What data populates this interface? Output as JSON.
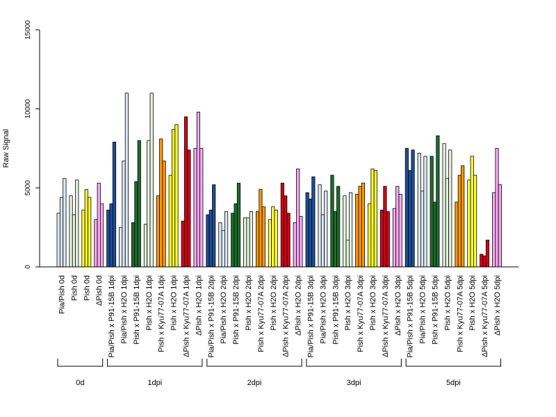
{
  "chart_data": {
    "type": "bar",
    "title": "",
    "xlabel": "",
    "ylabel": "Raw Signal",
    "ylim": [
      0,
      15000
    ],
    "yticks": [
      0,
      5000,
      10000,
      15000
    ],
    "grid": false,
    "legend": "none",
    "colors": {
      "Pia/Pish": "#dbe8f7",
      "Pish": "#e4f2de",
      "Pish yellow": "#ffff33",
      "ΔPish": "#f7a8f0",
      "P91-15B blue": "#1f4f99",
      "P91-15B green": "#1e6e2e",
      "Kyu77-07A": "#ff9900",
      "ΔPish x Kyu77-07A": "#d40018"
    },
    "categories": [
      {
        "label": "Pia/Pish 0d",
        "group": "0d",
        "color": "#dbe8f7",
        "values": [
          3400,
          4400,
          5600
        ]
      },
      {
        "label": "Pish 0d",
        "group": "0d",
        "color": "#e4f2de",
        "values": [
          4500,
          3300,
          5500
        ]
      },
      {
        "label": "Pish 0d",
        "group": "0d",
        "color": "#ffff33",
        "values": [
          3600,
          4900,
          4400
        ]
      },
      {
        "label": "ΔPish 0d",
        "group": "0d",
        "color": "#f7a8f0",
        "values": [
          3000,
          5300,
          4000
        ]
      },
      {
        "label": "Pia/Pish x P91-15B 1dpi",
        "group": "1dpi",
        "color": "#1f4f99",
        "values": [
          3600,
          4000,
          7900
        ]
      },
      {
        "label": "Pia/Pish x H2O 1dpi",
        "group": "1dpi",
        "color": "#dbe8f7",
        "values": [
          2500,
          6700,
          11000
        ]
      },
      {
        "label": "Pish x P91-15B 1dpi",
        "group": "1dpi",
        "color": "#1e6e2e",
        "values": [
          2800,
          5400,
          8000
        ]
      },
      {
        "label": "Pish x H2O 1dpi",
        "group": "1dpi",
        "color": "#e4f2de",
        "values": [
          2700,
          8000,
          11000
        ]
      },
      {
        "label": "Pish x Kyu77-07A 1dpi",
        "group": "1dpi",
        "color": "#ff9900",
        "values": [
          4500,
          8100,
          6700
        ]
      },
      {
        "label": "Pish x H2O 1dpi",
        "group": "1dpi",
        "color": "#ffff33",
        "values": [
          5800,
          8700,
          9000
        ]
      },
      {
        "label": "ΔPish x Kyu77-07A 1dpi",
        "group": "1dpi",
        "color": "#d40018",
        "values": [
          2900,
          9500,
          7400
        ]
      },
      {
        "label": "ΔPish x H2O 1dpi",
        "group": "1dpi",
        "color": "#f7a8f0",
        "values": [
          7500,
          9800,
          7500
        ]
      },
      {
        "label": "Pia/Pish x P91-15B 2dpi",
        "group": "2dpi",
        "color": "#1f4f99",
        "values": [
          3300,
          3600,
          5200
        ]
      },
      {
        "label": "Pia/Pish x H2O 2dpi",
        "group": "2dpi",
        "color": "#dbe8f7",
        "values": [
          2800,
          2300,
          3500
        ]
      },
      {
        "label": "Pish x P91-15B 2dpi",
        "group": "2dpi",
        "color": "#1e6e2e",
        "values": [
          3400,
          4000,
          5300
        ]
      },
      {
        "label": "Pish x H2O 2dpi",
        "group": "2dpi",
        "color": "#e4f2de",
        "values": [
          3100,
          3100,
          3500
        ]
      },
      {
        "label": "Pish x Kyu77-07A 2dpi",
        "group": "2dpi",
        "color": "#ff9900",
        "values": [
          3500,
          4900,
          3800
        ]
      },
      {
        "label": "Pish x H2O 2dpi",
        "group": "2dpi",
        "color": "#ffff33",
        "values": [
          3000,
          3800,
          3600
        ]
      },
      {
        "label": "ΔPish x Kyu77-07A 2dpi",
        "group": "2dpi",
        "color": "#d40018",
        "values": [
          5300,
          4500,
          3400
        ]
      },
      {
        "label": "ΔPish x H2O 2dpi",
        "group": "2dpi",
        "color": "#f7a8f0",
        "values": [
          2800,
          6200,
          3200
        ]
      },
      {
        "label": "Pia/Pish x P91-15B 3dpi",
        "group": "3dpi",
        "color": "#1f4f99",
        "values": [
          4700,
          4300,
          5700
        ]
      },
      {
        "label": "Pia/Pish x H2O 3dpi",
        "group": "3dpi",
        "color": "#dbe8f7",
        "values": [
          5200,
          3300,
          4800
        ]
      },
      {
        "label": "Pish x P91-15B 3dpi",
        "group": "3dpi",
        "color": "#1e6e2e",
        "values": [
          5800,
          3500,
          5100
        ]
      },
      {
        "label": "Pish x H2O 3dpi",
        "group": "3dpi",
        "color": "#e4f2de",
        "values": [
          4500,
          1700,
          4700
        ]
      },
      {
        "label": "Pish x Kyu77-07A 3dpi",
        "group": "3dpi",
        "color": "#ff9900",
        "values": [
          4600,
          5100,
          5300
        ]
      },
      {
        "label": "Pish x H2O 3dpi",
        "group": "3dpi",
        "color": "#ffff33",
        "values": [
          4000,
          6200,
          6100
        ]
      },
      {
        "label": "ΔPish x Kyu77-07A 3dpi",
        "group": "3dpi",
        "color": "#d40018",
        "values": [
          3600,
          5100,
          3500
        ]
      },
      {
        "label": "ΔPish x H2O 3dpi",
        "group": "3dpi",
        "color": "#f7a8f0",
        "values": [
          3700,
          5100,
          4600
        ]
      },
      {
        "label": "Pia/Pish x P91-15B 5dpi",
        "group": "5dpi",
        "color": "#1f4f99",
        "values": [
          7500,
          6100,
          7400
        ]
      },
      {
        "label": "Pia/Pish x H2O 5dpi",
        "group": "5dpi",
        "color": "#dbe8f7",
        "values": [
          7200,
          4800,
          7000
        ]
      },
      {
        "label": "Pish x P91-15B 5dpi",
        "group": "5dpi",
        "color": "#1e6e2e",
        "values": [
          7000,
          4100,
          8300
        ]
      },
      {
        "label": "Pish x H2O 5dpi",
        "group": "5dpi",
        "color": "#e4f2de",
        "values": [
          7800,
          5600,
          7400
        ]
      },
      {
        "label": "Pish x Kyu77-07A 5dpi",
        "group": "5dpi",
        "color": "#ff9900",
        "values": [
          4100,
          5800,
          6400
        ]
      },
      {
        "label": "Pish x H2O 5dpi",
        "group": "5dpi",
        "color": "#ffff33",
        "values": [
          5500,
          7000,
          5800
        ]
      },
      {
        "label": "ΔPish x Kyu77-07A 5dpi",
        "group": "5dpi",
        "color": "#d40018",
        "values": [
          800,
          700,
          1700
        ]
      },
      {
        "label": "ΔPish x H2O 5dpi",
        "group": "5dpi",
        "color": "#f7a8f0",
        "values": [
          4700,
          7500,
          5200
        ]
      }
    ],
    "groups": [
      {
        "label": "0d",
        "first": 0,
        "last": 3
      },
      {
        "label": "1dpi",
        "first": 4,
        "last": 11
      },
      {
        "label": "2dpi",
        "first": 12,
        "last": 19
      },
      {
        "label": "3dpi",
        "first": 20,
        "last": 27
      },
      {
        "label": "5dpi",
        "first": 28,
        "last": 35
      }
    ]
  }
}
